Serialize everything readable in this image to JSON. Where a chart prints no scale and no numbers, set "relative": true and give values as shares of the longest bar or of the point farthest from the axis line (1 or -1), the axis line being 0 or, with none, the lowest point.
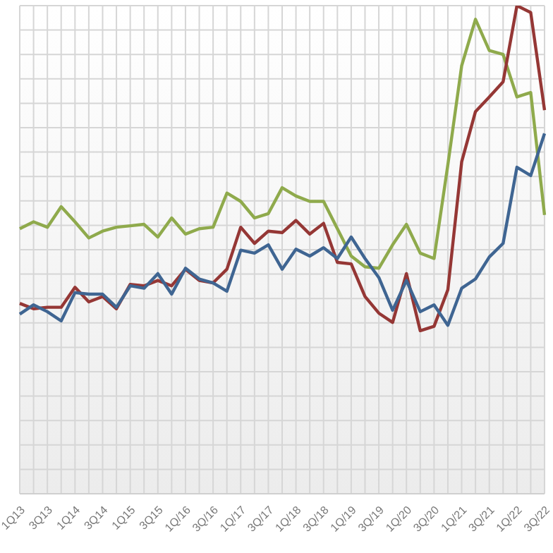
{
  "chart_data": {
    "type": "line",
    "relative": true,
    "grid": true,
    "marker": "none",
    "line_style": "solid",
    "categories": [
      "1Q13",
      null,
      "3Q13",
      null,
      "1Q14",
      null,
      "3Q14",
      null,
      "1Q15",
      null,
      "3Q15",
      null,
      "1Q/16",
      null,
      "3Q/16",
      null,
      "1Q/17",
      null,
      "3Q/17",
      null,
      "1Q/18",
      null,
      "3Q/18",
      null,
      "1Q/19",
      null,
      "3Q/19",
      null,
      "1Q/20",
      null,
      "3Q/20",
      null,
      "1Q/21",
      null,
      "3Q/21",
      null,
      "1Q/22",
      null,
      "3Q/22"
    ],
    "series": [
      {
        "color": "#8faa4c",
        "values": [
          0.543,
          0.557,
          0.546,
          0.588,
          0.557,
          0.524,
          0.538,
          0.546,
          0.549,
          0.552,
          0.526,
          0.565,
          0.532,
          0.543,
          0.546,
          0.616,
          0.599,
          0.565,
          0.574,
          0.627,
          0.61,
          0.599,
          0.599,
          0.543,
          0.487,
          0.465,
          0.462,
          0.51,
          0.552,
          0.493,
          0.482,
          0.674,
          0.877,
          0.972,
          0.908,
          0.9,
          0.813,
          0.822,
          0.571
        ]
      },
      {
        "color": "#953735",
        "values": [
          0.39,
          0.379,
          0.382,
          0.382,
          0.423,
          0.393,
          0.404,
          0.379,
          0.429,
          0.426,
          0.437,
          0.426,
          0.46,
          0.437,
          0.432,
          0.46,
          0.546,
          0.513,
          0.538,
          0.535,
          0.56,
          0.532,
          0.554,
          0.474,
          0.471,
          0.404,
          0.37,
          0.351,
          0.451,
          0.334,
          0.343,
          0.418,
          0.68,
          0.783,
          0.813,
          0.844,
          1,
          0.986,
          0.786
        ]
      },
      {
        "color": "#3f6592",
        "values": [
          0.368,
          0.387,
          0.373,
          0.354,
          0.412,
          0.409,
          0.409,
          0.382,
          0.426,
          0.421,
          0.451,
          0.409,
          0.462,
          0.44,
          0.432,
          0.415,
          0.499,
          0.493,
          0.51,
          0.46,
          0.501,
          0.487,
          0.504,
          0.482,
          0.526,
          0.482,
          0.443,
          0.376,
          0.437,
          0.373,
          0.387,
          0.345,
          0.421,
          0.44,
          0.485,
          0.513,
          0.669,
          0.652,
          0.738
        ]
      }
    ]
  }
}
